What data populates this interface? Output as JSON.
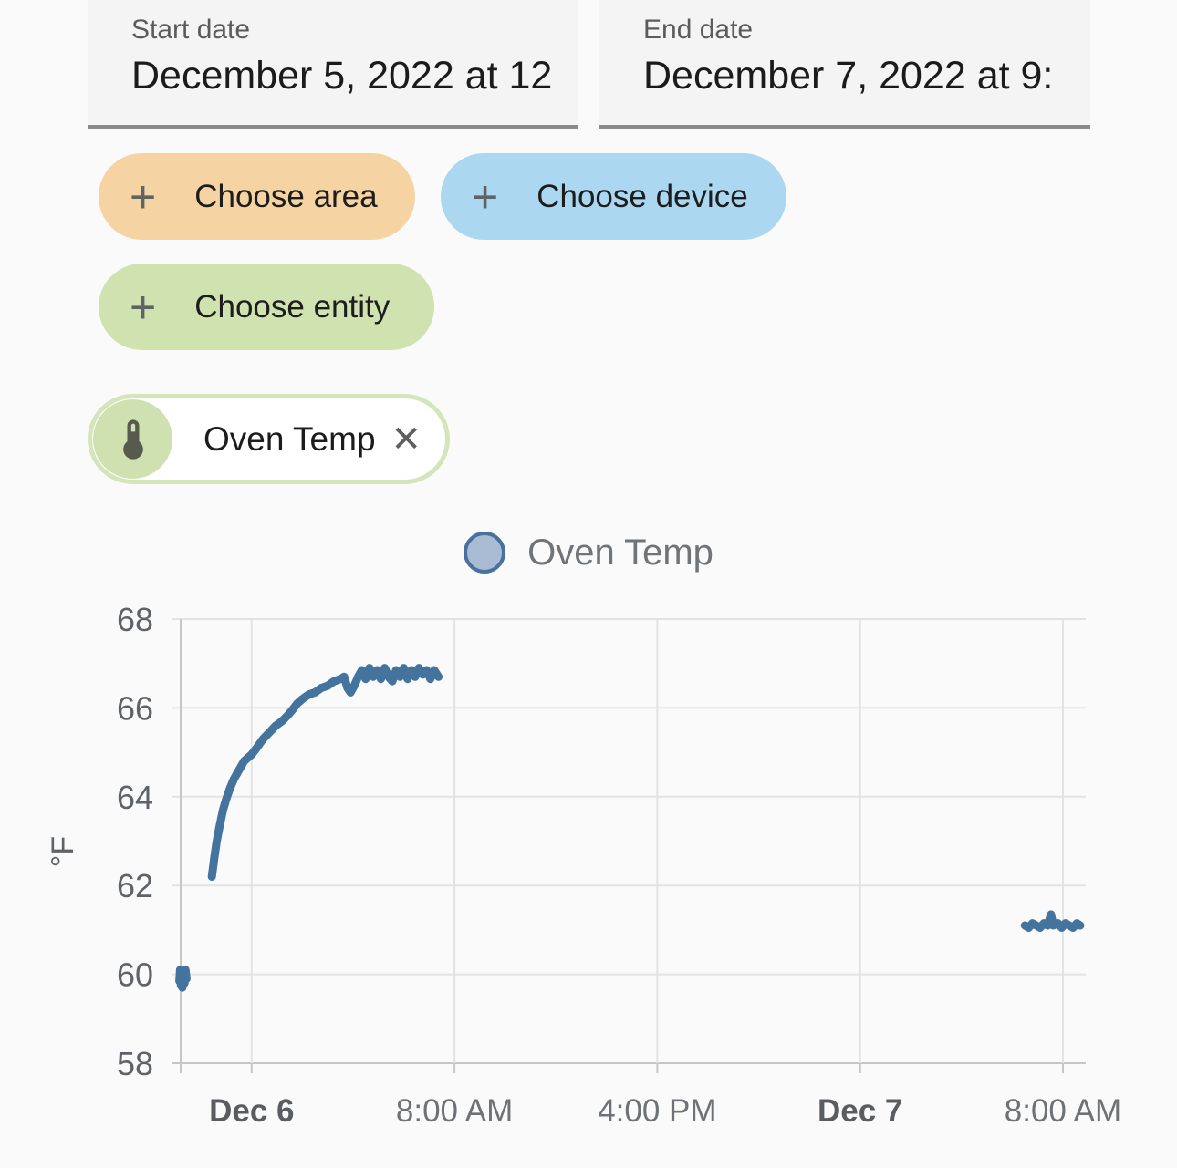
{
  "date_range": {
    "start": {
      "label": "Start date",
      "value": "December 5, 2022 at 12"
    },
    "end": {
      "label": "End date",
      "value": "December 7, 2022 at 9:"
    }
  },
  "icons": {
    "plus_glyph": "+",
    "close_glyph": "✕"
  },
  "filters": {
    "choose_area": {
      "label": "Choose area",
      "color": "#f5d3a2"
    },
    "choose_device": {
      "label": "Choose device",
      "color": "#abd7f1"
    },
    "choose_entity": {
      "label": "Choose entity",
      "color": "#d0e2b0"
    },
    "selected_entity": {
      "label": "Oven Temp",
      "accent_color": "#cfe1b0",
      "border_color": "#d4e5bb",
      "icon_color": "#565b4e"
    }
  },
  "legend": {
    "items": [
      {
        "label": "Oven Temp",
        "fill": "#a9bcd4",
        "border": "#4a719e"
      }
    ]
  },
  "chart_data": {
    "type": "scatter",
    "title": "",
    "xlabel": "",
    "ylabel": "°F",
    "ylim": [
      58,
      68
    ],
    "y_ticks": [
      58,
      60,
      62,
      64,
      66,
      68
    ],
    "grid": true,
    "legend_position": "top-center",
    "x_unit": "hours since 2022-12-05 00:00",
    "xlim": [
      21.2,
      56.9
    ],
    "x_ticks": [
      {
        "t": 24,
        "label": "Dec 6",
        "bold": true
      },
      {
        "t": 32,
        "label": "8:00 AM",
        "bold": false
      },
      {
        "t": 40,
        "label": "4:00 PM",
        "bold": false
      },
      {
        "t": 48,
        "label": "Dec 7",
        "bold": true
      },
      {
        "t": 56,
        "label": "8:00 AM",
        "bold": false
      }
    ],
    "series": [
      {
        "name": "Oven Temp",
        "color": "#44739e",
        "segments": [
          [
            [
              21.15,
              59.85
            ],
            [
              21.18,
              60.1
            ],
            [
              21.21,
              59.75
            ],
            [
              21.24,
              60.05
            ],
            [
              21.27,
              59.7
            ],
            [
              21.31,
              60.0
            ],
            [
              21.35,
              59.8
            ],
            [
              21.39,
              60.1
            ],
            [
              21.43,
              59.9
            ]
          ],
          [
            [
              22.43,
              62.2
            ],
            [
              22.52,
              62.6
            ],
            [
              22.62,
              63.0
            ],
            [
              22.74,
              63.35
            ],
            [
              22.87,
              63.7
            ],
            [
              23.0,
              63.95
            ],
            [
              23.15,
              64.2
            ],
            [
              23.3,
              64.4
            ],
            [
              23.5,
              64.6
            ],
            [
              23.7,
              64.8
            ],
            [
              24.0,
              64.95
            ],
            [
              24.2,
              65.1
            ],
            [
              24.45,
              65.3
            ],
            [
              24.7,
              65.45
            ],
            [
              24.95,
              65.6
            ],
            [
              25.2,
              65.7
            ],
            [
              25.45,
              65.85
            ],
            [
              25.6,
              65.95
            ],
            [
              25.8,
              66.1
            ],
            [
              26.0,
              66.2
            ],
            [
              26.25,
              66.3
            ],
            [
              26.5,
              66.35
            ],
            [
              26.75,
              66.45
            ],
            [
              27.0,
              66.5
            ],
            [
              27.25,
              66.6
            ],
            [
              27.5,
              66.65
            ],
            [
              27.65,
              66.7
            ],
            [
              27.78,
              66.45
            ],
            [
              27.9,
              66.35
            ],
            [
              28.05,
              66.5
            ],
            [
              28.2,
              66.7
            ],
            [
              28.35,
              66.85
            ],
            [
              28.5,
              66.65
            ],
            [
              28.65,
              66.9
            ],
            [
              28.8,
              66.7
            ],
            [
              28.95,
              66.85
            ],
            [
              29.1,
              66.65
            ],
            [
              29.25,
              66.9
            ],
            [
              29.4,
              66.7
            ],
            [
              29.55,
              66.6
            ],
            [
              29.7,
              66.85
            ],
            [
              29.85,
              66.7
            ],
            [
              30.0,
              66.9
            ],
            [
              30.15,
              66.65
            ],
            [
              30.3,
              66.85
            ],
            [
              30.45,
              66.7
            ],
            [
              30.6,
              66.9
            ],
            [
              30.75,
              66.75
            ],
            [
              30.9,
              66.85
            ],
            [
              31.05,
              66.65
            ],
            [
              31.2,
              66.85
            ],
            [
              31.37,
              66.7
            ]
          ],
          [
            [
              54.5,
              61.1
            ],
            [
              54.65,
              61.05
            ],
            [
              54.8,
              61.15
            ],
            [
              54.95,
              61.1
            ],
            [
              55.1,
              61.05
            ],
            [
              55.25,
              61.15
            ],
            [
              55.4,
              61.1
            ],
            [
              55.53,
              61.35
            ],
            [
              55.62,
              61.1
            ],
            [
              55.8,
              61.15
            ],
            [
              55.95,
              61.05
            ],
            [
              56.1,
              61.15
            ],
            [
              56.25,
              61.1
            ],
            [
              56.4,
              61.05
            ],
            [
              56.55,
              61.15
            ],
            [
              56.68,
              61.1
            ]
          ]
        ]
      }
    ],
    "colors": {
      "gridline": "#e3e3e3",
      "axis_line": "#c6c6c6",
      "tick_label": "#5f6368",
      "tick_label_bold": "#595d61"
    }
  }
}
